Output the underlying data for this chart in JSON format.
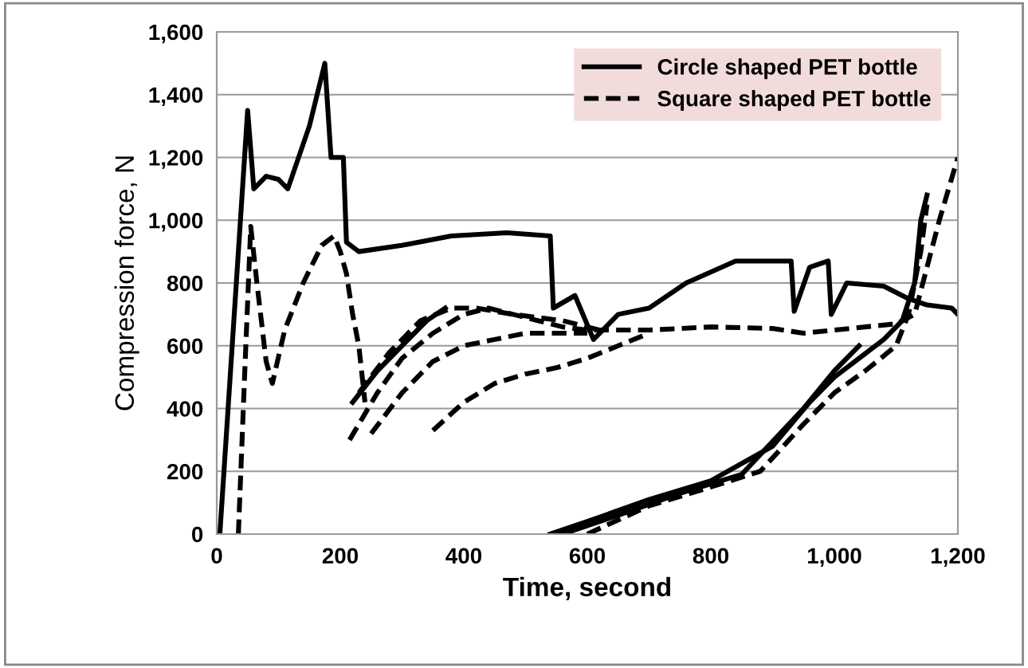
{
  "chart_data": {
    "type": "line",
    "xlabel": "Time, second",
    "ylabel": "Compression force, N",
    "xlim": [
      0,
      1200
    ],
    "ylim": [
      0,
      1600
    ],
    "xticks": [
      0,
      200,
      400,
      600,
      800,
      {
        "value": 1000,
        "label": "1,000"
      },
      {
        "value": 1200,
        "label": "1,200"
      }
    ],
    "yticks": [
      0,
      200,
      400,
      600,
      800,
      {
        "value": 1000,
        "label": "1,000"
      },
      {
        "value": 1200,
        "label": "1,200"
      },
      {
        "value": 1400,
        "label": "1,400"
      },
      {
        "value": 1600,
        "label": "1,600"
      }
    ],
    "grid": "y",
    "legend": "top right",
    "marker": "none",
    "series": [
      {
        "name": "Circle shaped PET bottle",
        "color": "#000000",
        "line_style": "solid",
        "x": [
          5,
          50,
          60,
          80,
          100,
          115,
          150,
          175,
          185,
          205,
          210,
          230,
          300,
          380,
          470,
          540,
          545,
          580,
          610,
          650,
          700,
          760,
          840,
          930,
          935,
          960,
          990,
          995,
          1020,
          1080,
          1120,
          1150,
          1190,
          1200
        ],
        "values": [
          0,
          1350,
          1100,
          1140,
          1130,
          1100,
          1300,
          1500,
          1200,
          1200,
          930,
          900,
          920,
          950,
          960,
          950,
          720,
          760,
          620,
          700,
          720,
          800,
          870,
          870,
          710,
          850,
          870,
          700,
          800,
          790,
          750,
          730,
          720,
          700
        ]
      },
      {
        "name": "Square shaped PET bottle",
        "color": "#000000",
        "line_style": "dashed",
        "x": [
          35,
          45,
          55,
          65,
          80,
          90,
          110,
          140,
          170,
          190,
          200,
          210,
          220,
          230,
          240
        ],
        "values": [
          0,
          500,
          980,
          800,
          550,
          480,
          650,
          800,
          920,
          950,
          900,
          830,
          700,
          600,
          420
        ]
      },
      {
        "color": "#000000",
        "line_style": "dashed",
        "x": [
          215,
          260,
          300,
          350,
          400,
          440,
          480,
          520,
          560,
          600,
          700,
          800,
          900,
          950,
          1000,
          1050,
          1100,
          1130,
          1150,
          1170,
          1200
        ],
        "values": [
          300,
          450,
          560,
          640,
          700,
          720,
          700,
          680,
          660,
          650,
          650,
          660,
          655,
          640,
          650,
          660,
          670,
          700,
          850,
          1000,
          1200
        ]
      },
      {
        "color": "#000000",
        "line_style": "dashed",
        "x": [
          250,
          300,
          350,
          400,
          450,
          500,
          550,
          600
        ],
        "values": [
          320,
          450,
          550,
          600,
          620,
          640,
          640,
          640
        ]
      },
      {
        "color": "#000000",
        "line_style": "dashed",
        "x": [
          350,
          400,
          450,
          500,
          550,
          600,
          650,
          700
        ],
        "values": [
          330,
          420,
          480,
          510,
          530,
          560,
          600,
          640
        ]
      },
      {
        "color": "#000000",
        "line_style": "dashed",
        "x": [
          230,
          280,
          330,
          380,
          420,
          480,
          560,
          620
        ],
        "values": [
          450,
          580,
          680,
          720,
          720,
          700,
          680,
          650
        ]
      },
      {
        "color": "#000000",
        "line_style": "solid",
        "x": [
          220,
          260,
          300,
          340,
          370
        ],
        "values": [
          420,
          520,
          600,
          680,
          720
        ]
      },
      {
        "color": "#000000",
        "line_style": "solid",
        "x": [
          540,
          600,
          700,
          800,
          900,
          960,
          1000,
          1040,
          1080,
          1110,
          1130,
          1140,
          1150
        ],
        "values": [
          0,
          40,
          110,
          170,
          280,
          420,
          500,
          560,
          620,
          680,
          800,
          1000,
          1080
        ]
      },
      {
        "color": "#000000",
        "line_style": "dashed",
        "x": [
          600,
          700,
          800,
          880,
          950,
          1000,
          1050,
          1100,
          1120,
          1140,
          1150
        ],
        "values": [
          0,
          90,
          150,
          200,
          350,
          450,
          520,
          600,
          700,
          900,
          1050
        ]
      },
      {
        "color": "#000000",
        "line_style": "solid",
        "x": [
          560,
          650,
          750,
          850,
          950,
          1000,
          1040
        ],
        "values": [
          0,
          60,
          130,
          190,
          400,
          520,
          600
        ]
      }
    ]
  }
}
